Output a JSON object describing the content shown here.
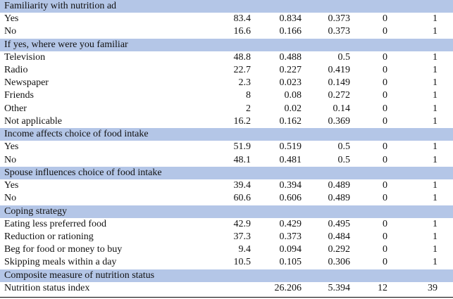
{
  "table": {
    "sections": [
      {
        "title": "Familiarity with nutrition ad",
        "rows": [
          {
            "label": "Yes",
            "pct": "83.4",
            "mean": "0.834",
            "sd": "0.373",
            "min": "0",
            "max": "1"
          },
          {
            "label": "No",
            "pct": "16.6",
            "mean": "0.166",
            "sd": "0.373",
            "min": "0",
            "max": "1"
          }
        ]
      },
      {
        "title": "If yes, where were you familiar",
        "rows": [
          {
            "label": "Television",
            "pct": "48.8",
            "mean": "0.488",
            "sd": "0.5",
            "min": "0",
            "max": "1"
          },
          {
            "label": "Radio",
            "pct": "22.7",
            "mean": "0.227",
            "sd": "0.419",
            "min": "0",
            "max": "1"
          },
          {
            "label": "Newspaper",
            "pct": "2.3",
            "mean": "0.023",
            "sd": "0.149",
            "min": "0",
            "max": "1"
          },
          {
            "label": "Friends",
            "pct": "8",
            "mean": "0.08",
            "sd": "0.272",
            "min": "0",
            "max": "1"
          },
          {
            "label": "Other",
            "pct": "2",
            "mean": "0.02",
            "sd": "0.14",
            "min": "0",
            "max": "1"
          },
          {
            "label": "Not applicable",
            "pct": "16.2",
            "mean": "0.162",
            "sd": "0.369",
            "min": "0",
            "max": "1"
          }
        ]
      },
      {
        "title": "Income affects choice of food intake",
        "rows": [
          {
            "label": "Yes",
            "pct": "51.9",
            "mean": "0.519",
            "sd": "0.5",
            "min": "0",
            "max": "1"
          },
          {
            "label": "No",
            "pct": "48.1",
            "mean": "0.481",
            "sd": "0.5",
            "min": "0",
            "max": "1"
          }
        ]
      },
      {
        "title": "Spouse influences choice of food intake",
        "rows": [
          {
            "label": "Yes",
            "pct": "39.4",
            "mean": "0.394",
            "sd": "0.489",
            "min": "0",
            "max": "1"
          },
          {
            "label": "No",
            "pct": "60.6",
            "mean": "0.606",
            "sd": "0.489",
            "min": "0",
            "max": "1"
          }
        ]
      },
      {
        "title": "Coping strategy",
        "rows": [
          {
            "label": "Eating less preferred food",
            "pct": "42.9",
            "mean": "0.429",
            "sd": "0.495",
            "min": "0",
            "max": "1"
          },
          {
            "label": "Reduction or rationing",
            "pct": "37.3",
            "mean": "0.373",
            "sd": "0.484",
            "min": "0",
            "max": "1"
          },
          {
            "label": "Beg for food or money to buy",
            "pct": "9.4",
            "mean": "0.094",
            "sd": "0.292",
            "min": "0",
            "max": "1"
          },
          {
            "label": "Skipping meals within a day",
            "pct": "10.5",
            "mean": "0.105",
            "sd": "0.306",
            "min": "0",
            "max": "1"
          }
        ]
      },
      {
        "title": "Composite measure of nutrition status",
        "rows": [
          {
            "label": "Nutrition status index",
            "pct": "",
            "mean": "26.206",
            "sd": "5.394",
            "min": "12",
            "max": "39"
          }
        ]
      }
    ],
    "colors": {
      "section_header_bg": "#b4c6e7",
      "text": "#111111",
      "rule": "#000000"
    }
  }
}
